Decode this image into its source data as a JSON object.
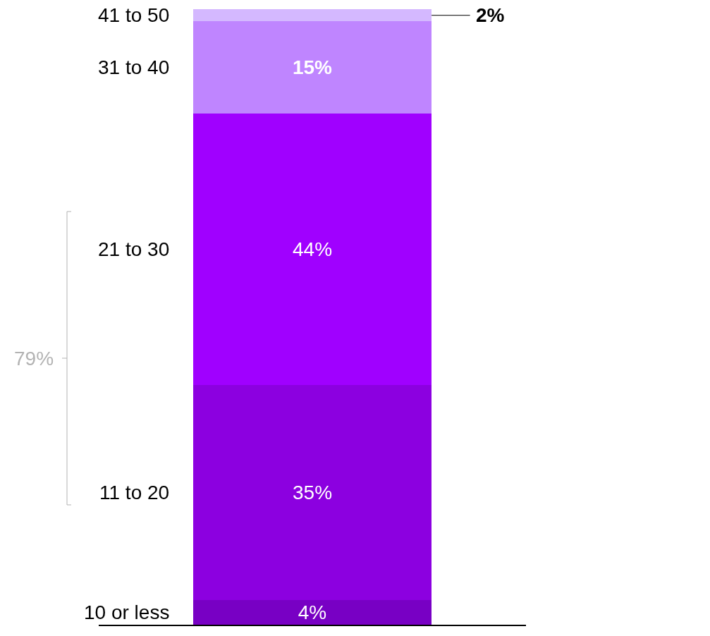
{
  "chart_data": {
    "type": "bar",
    "stacked": true,
    "categories": [
      null
    ],
    "ylim": [
      0,
      100
    ],
    "tick_labels": false,
    "grid": false,
    "legend": false,
    "series": [
      {
        "name": "10 or less",
        "color": "#7800c4",
        "values": [
          4
        ],
        "value_labels": [
          "4%"
        ]
      },
      {
        "name": "11 to 20",
        "color": "#8c00e0",
        "values": [
          35
        ],
        "value_labels": [
          "35%"
        ]
      },
      {
        "name": "21 to 30",
        "color": "#a000ff",
        "values": [
          44
        ],
        "value_labels": [
          "44%"
        ]
      },
      {
        "name": "31 to 40",
        "color": "#bf85ff",
        "values": [
          15
        ],
        "value_labels": [
          "15%"
        ]
      },
      {
        "name": "41 to 50",
        "color": "#d4b8ff",
        "values": [
          2
        ],
        "value_labels": [
          "2%"
        ]
      }
    ],
    "annotations": [
      "79%"
    ]
  }
}
